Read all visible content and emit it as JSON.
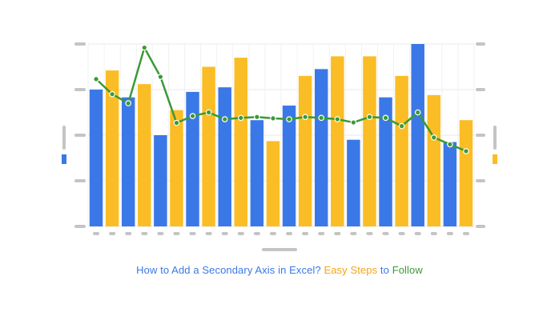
{
  "chart_data": {
    "type": "bar",
    "secondary_series_type": "line",
    "categories": [
      "",
      "",
      "",
      "",
      "",
      "",
      "",
      "",
      "",
      "",
      "",
      "",
      "",
      "",
      "",
      "",
      "",
      "",
      "",
      "",
      "",
      "",
      "",
      ""
    ],
    "ylim": [
      0,
      4
    ],
    "y2lim": [
      0,
      4
    ],
    "grid": true,
    "series": [
      {
        "color": "#3b78e7",
        "values": [
          3.0,
          null,
          2.83,
          null,
          2.0,
          null,
          2.95,
          null,
          3.05,
          null,
          2.33,
          null,
          2.65,
          null,
          3.45,
          null,
          1.9,
          null,
          2.83,
          null,
          4.0,
          null,
          1.85,
          null
        ]
      },
      {
        "color": "#fbbd25",
        "values": [
          null,
          3.42,
          null,
          3.12,
          null,
          2.55,
          null,
          3.5,
          null,
          3.7,
          null,
          1.87,
          null,
          3.3,
          null,
          3.73,
          null,
          3.73,
          null,
          3.3,
          null,
          2.88,
          null,
          2.33
        ]
      },
      {
        "color": "#3a9a35",
        "axis": "secondary",
        "values": [
          3.23,
          2.9,
          2.7,
          3.92,
          3.28,
          2.27,
          2.42,
          2.5,
          2.35,
          2.38,
          2.4,
          2.37,
          2.35,
          2.4,
          2.38,
          2.35,
          2.28,
          2.4,
          2.38,
          2.2,
          2.5,
          1.95,
          1.8,
          1.65
        ]
      }
    ]
  },
  "caption": {
    "part1": "How to Add a Secondary Axis in Excel? ",
    "part2": "Easy Steps ",
    "part3": "to ",
    "part4": "Follow"
  },
  "colors": {
    "blue": "#3b78e7",
    "orange": "#fbbd25",
    "green": "#3a9a35",
    "placeholder": "#c4c4c4",
    "caption_blue": "#3b78e7",
    "caption_orange": "#f4a418",
    "caption_green": "#3a9a35"
  }
}
